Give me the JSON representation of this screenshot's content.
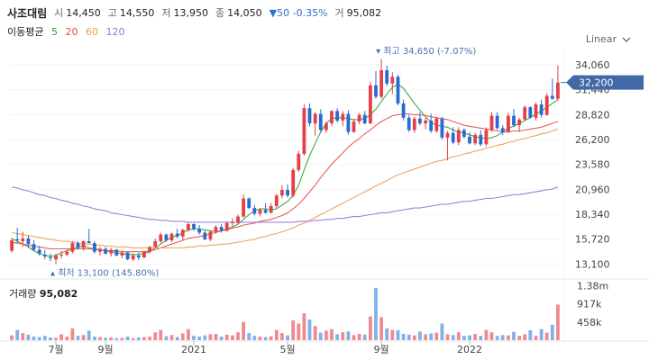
{
  "header": {
    "stock_name": "사조대림",
    "open_label": "시",
    "open": "14,450",
    "high_label": "고",
    "high": "14,550",
    "low_label": "저",
    "low": "13,950",
    "close_label": "종",
    "close": "14,050",
    "change": "▼50 -0.35%",
    "volume_label": "거",
    "volume": "95,082"
  },
  "moving_average": {
    "title": "이동평균",
    "periods": [
      {
        "label": "5",
        "color": "#2ca02c"
      },
      {
        "label": "20",
        "color": "#e64a4a"
      },
      {
        "label": "60",
        "color": "#f39a4c"
      },
      {
        "label": "120",
        "color": "#9b6fe0"
      }
    ]
  },
  "scale_toggle": {
    "label": "Linear"
  },
  "volume_panel": {
    "title": "거래량",
    "value": "95,082"
  },
  "colors": {
    "up": "#e5404a",
    "down": "#2a6bd1",
    "volume_up": "#f08a8f",
    "volume_down": "#7fb2e8",
    "price_tag": "#4169a8"
  },
  "chart_data": {
    "type": "candlestick",
    "price_axis": {
      "ticks": [
        "34,060",
        "31,440",
        "28,820",
        "26,200",
        "23,580",
        "20,960",
        "18,340",
        "15,720",
        "13,100"
      ],
      "range": [
        12000,
        35200
      ]
    },
    "volume_axis": {
      "ticks": [
        "1.38m",
        "917k",
        "458k"
      ],
      "range": [
        0,
        1500000
      ]
    },
    "x_ticks": [
      {
        "label": "7월",
        "index": 8
      },
      {
        "label": "9월",
        "index": 17
      },
      {
        "label": "2021",
        "index": 33
      },
      {
        "label": "5월",
        "index": 50
      },
      {
        "label": "9월",
        "index": 67
      },
      {
        "label": "2022",
        "index": 83
      }
    ],
    "current_price": {
      "label": "32,200",
      "value": 32200
    },
    "max_annotation": {
      "label": "최고 34,650 (-7.07%)",
      "index": 67,
      "value": 34650
    },
    "min_annotation": {
      "label": "최저 13,100 (145.80%)",
      "index": 8,
      "value": 13100
    },
    "ohlc": [
      [
        14500,
        15800,
        14300,
        15600
      ],
      [
        15700,
        16900,
        15300,
        15600
      ],
      [
        15500,
        16500,
        14900,
        15800
      ],
      [
        15800,
        16100,
        14800,
        15200
      ],
      [
        15200,
        15600,
        14500,
        14600
      ],
      [
        14600,
        15000,
        14000,
        14200
      ],
      [
        14100,
        14600,
        13600,
        13900
      ],
      [
        13800,
        14200,
        13400,
        13700
      ],
      [
        13600,
        14200,
        13100,
        14000
      ],
      [
        14000,
        14500,
        13700,
        14100
      ],
      [
        14100,
        14600,
        13900,
        14400
      ],
      [
        14400,
        15500,
        14200,
        15300
      ],
      [
        15300,
        15500,
        14600,
        14800
      ],
      [
        14800,
        15600,
        14500,
        15500
      ],
      [
        15500,
        16800,
        15300,
        15300
      ],
      [
        15300,
        15500,
        14200,
        14400
      ],
      [
        14400,
        14900,
        14000,
        14700
      ],
      [
        14700,
        14900,
        14100,
        14200
      ],
      [
        14200,
        14800,
        13900,
        14600
      ],
      [
        14600,
        14700,
        13900,
        14000
      ],
      [
        14000,
        14500,
        13700,
        14300
      ],
      [
        14300,
        14400,
        13500,
        13600
      ],
      [
        13600,
        14200,
        13400,
        14000
      ],
      [
        14000,
        14300,
        13500,
        13800
      ],
      [
        13800,
        14500,
        13700,
        14400
      ],
      [
        14400,
        15000,
        14200,
        14900
      ],
      [
        14900,
        15800,
        14800,
        15500
      ],
      [
        15500,
        16400,
        15300,
        16200
      ],
      [
        16200,
        16300,
        15400,
        15600
      ],
      [
        15600,
        16400,
        15400,
        16300
      ],
      [
        16300,
        16800,
        15800,
        16000
      ],
      [
        16000,
        16800,
        15600,
        16700
      ],
      [
        16700,
        17500,
        16500,
        17300
      ],
      [
        17300,
        17400,
        16600,
        16800
      ],
      [
        16800,
        17200,
        16200,
        16400
      ],
      [
        16400,
        16600,
        15600,
        15700
      ],
      [
        15700,
        16600,
        15500,
        16500
      ],
      [
        16500,
        17200,
        16300,
        17000
      ],
      [
        17000,
        17300,
        16400,
        16600
      ],
      [
        16600,
        17600,
        16500,
        17400
      ],
      [
        17400,
        17900,
        17100,
        17500
      ],
      [
        17500,
        18300,
        17300,
        18100
      ],
      [
        18100,
        20400,
        18000,
        20000
      ],
      [
        20000,
        20100,
        18900,
        19000
      ],
      [
        19000,
        19300,
        18200,
        18400
      ],
      [
        18400,
        19000,
        18100,
        18800
      ],
      [
        18800,
        19500,
        18400,
        18500
      ],
      [
        18500,
        19500,
        18400,
        19200
      ],
      [
        19200,
        20500,
        19000,
        20300
      ],
      [
        20300,
        21400,
        20000,
        20900
      ],
      [
        20900,
        21500,
        20100,
        20300
      ],
      [
        20300,
        23200,
        20100,
        23000
      ],
      [
        23000,
        25000,
        22800,
        24700
      ],
      [
        24700,
        29900,
        24500,
        29500
      ],
      [
        29500,
        30000,
        27600,
        27900
      ],
      [
        27900,
        29100,
        26600,
        28900
      ],
      [
        28900,
        29400,
        27000,
        27200
      ],
      [
        27200,
        28100,
        26900,
        27900
      ],
      [
        27900,
        29300,
        27600,
        29200
      ],
      [
        29200,
        29500,
        28000,
        28200
      ],
      [
        28200,
        29200,
        27600,
        28900
      ],
      [
        28900,
        29300,
        26700,
        27000
      ],
      [
        27000,
        28300,
        26900,
        28100
      ],
      [
        28100,
        29000,
        27800,
        28800
      ],
      [
        28800,
        29200,
        27800,
        27900
      ],
      [
        27900,
        32300,
        27800,
        31900
      ],
      [
        31900,
        33400,
        30500,
        30700
      ],
      [
        30700,
        34650,
        30500,
        33500
      ],
      [
        33500,
        34000,
        31800,
        32100
      ],
      [
        32100,
        33300,
        31000,
        32800
      ],
      [
        32800,
        33000,
        29800,
        30000
      ],
      [
        30000,
        30400,
        28200,
        28500
      ],
      [
        28500,
        28800,
        27000,
        27200
      ],
      [
        27200,
        28600,
        26900,
        28400
      ],
      [
        28400,
        29100,
        27700,
        27900
      ],
      [
        27900,
        28500,
        27300,
        28200
      ],
      [
        28200,
        28900,
        26900,
        27100
      ],
      [
        27100,
        28600,
        26900,
        28400
      ],
      [
        28400,
        28600,
        26200,
        26400
      ],
      [
        26400,
        27100,
        24000,
        26900
      ],
      [
        26900,
        27500,
        25700,
        25900
      ],
      [
        25900,
        27500,
        25600,
        27200
      ],
      [
        27200,
        27400,
        26300,
        26500
      ],
      [
        26500,
        27000,
        25700,
        25800
      ],
      [
        25800,
        26900,
        25600,
        26700
      ],
      [
        26700,
        27200,
        25500,
        25700
      ],
      [
        25700,
        27500,
        25500,
        27200
      ],
      [
        27200,
        29100,
        27000,
        28700
      ],
      [
        28700,
        29100,
        27200,
        27400
      ],
      [
        27400,
        27700,
        26700,
        27000
      ],
      [
        27000,
        29000,
        26900,
        28700
      ],
      [
        28700,
        29400,
        27500,
        27700
      ],
      [
        27700,
        28500,
        27000,
        28300
      ],
      [
        28300,
        29800,
        28200,
        29600
      ],
      [
        29600,
        29700,
        28400,
        28500
      ],
      [
        28500,
        30100,
        28200,
        29900
      ],
      [
        29900,
        30400,
        28500,
        28800
      ],
      [
        28800,
        31100,
        28700,
        30800
      ],
      [
        30800,
        32600,
        30400,
        30500
      ],
      [
        30500,
        34000,
        30300,
        32200
      ]
    ],
    "ma_lines": [
      {
        "period": 5,
        "color": "#2ca02c",
        "points": [
          15800,
          15500,
          15200,
          14900,
          14500,
          14200,
          14000,
          13900,
          14000,
          14300,
          14500,
          14700,
          14900,
          15000,
          14800,
          14700,
          14600,
          14500,
          14400,
          14300,
          14200,
          14100,
          14100,
          14100,
          14200,
          14400,
          14800,
          15200,
          15600,
          15900,
          16100,
          16400,
          16700,
          16800,
          16800,
          16700,
          16600,
          16500,
          16600,
          16800,
          17000,
          17300,
          17800,
          18300,
          18700,
          18900,
          18900,
          18800,
          18900,
          19300,
          19700,
          20300,
          21400,
          23000,
          24500,
          25800,
          27000,
          27900,
          28400,
          28500,
          28500,
          28400,
          28300,
          28300,
          28400,
          28800,
          29400,
          30200,
          31000,
          31700,
          32000,
          31600,
          30800,
          30000,
          29300,
          28600,
          28000,
          27700,
          27600,
          27500,
          27200,
          27000,
          26900,
          26700,
          26500,
          26400,
          26300,
          26400,
          26600,
          27000,
          27400,
          27600,
          27900,
          28200,
          28500,
          28900,
          29200,
          29600,
          30000,
          30400
        ]
      },
      {
        "period": 20,
        "color": "#e64a4a",
        "points": [
          15400,
          15300,
          15200,
          15100,
          15000,
          14900,
          14800,
          14700,
          14700,
          14700,
          14700,
          14700,
          14700,
          14700,
          14700,
          14600,
          14600,
          14500,
          14500,
          14500,
          14400,
          14400,
          14400,
          14400,
          14400,
          14500,
          14600,
          14800,
          15000,
          15200,
          15400,
          15600,
          15800,
          15900,
          16000,
          16100,
          16300,
          16400,
          16600,
          16700,
          16900,
          17000,
          17200,
          17300,
          17400,
          17600,
          17700,
          17800,
          18000,
          18200,
          18500,
          18900,
          19400,
          20000,
          20700,
          21400,
          22200,
          22900,
          23600,
          24200,
          24800,
          25400,
          25900,
          26300,
          26800,
          27200,
          27700,
          28100,
          28400,
          28700,
          28800,
          28900,
          28900,
          28800,
          28800,
          28700,
          28600,
          28500,
          28400,
          28300,
          28100,
          27900,
          27700,
          27600,
          27500,
          27400,
          27300,
          27200,
          27100,
          27000,
          27000,
          27100,
          27100,
          27200,
          27300,
          27400,
          27500,
          27700,
          27900,
          28100
        ]
      },
      {
        "period": 60,
        "color": "#f39a4c",
        "points": [
          16400,
          16300,
          16200,
          16100,
          16000,
          15900,
          15800,
          15700,
          15600,
          15500,
          15500,
          15400,
          15300,
          15200,
          15200,
          15100,
          15100,
          15000,
          15000,
          14900,
          14900,
          14900,
          14800,
          14800,
          14800,
          14800,
          14800,
          14800,
          14800,
          14800,
          14800,
          14800,
          14900,
          14900,
          15000,
          15000,
          15100,
          15100,
          15200,
          15200,
          15300,
          15400,
          15500,
          15600,
          15700,
          15900,
          16000,
          16200,
          16300,
          16500,
          16700,
          16900,
          17200,
          17400,
          17700,
          18000,
          18300,
          18600,
          18900,
          19200,
          19500,
          19800,
          20100,
          20400,
          20700,
          21000,
          21300,
          21600,
          21900,
          22200,
          22500,
          22700,
          22900,
          23100,
          23300,
          23500,
          23700,
          23900,
          24000,
          24200,
          24400,
          24500,
          24700,
          24800,
          25000,
          25100,
          25300,
          25400,
          25600,
          25700,
          25900,
          26000,
          26200,
          26300,
          26500,
          26600,
          26800,
          26900,
          27100,
          27300
        ]
      },
      {
        "period": 120,
        "color": "#9b6fe0",
        "points": [
          21200,
          21100,
          20900,
          20800,
          20600,
          20400,
          20300,
          20100,
          20000,
          19800,
          19700,
          19500,
          19400,
          19200,
          19100,
          18900,
          18800,
          18700,
          18500,
          18400,
          18300,
          18200,
          18100,
          18000,
          17900,
          17800,
          17800,
          17700,
          17700,
          17600,
          17600,
          17600,
          17500,
          17500,
          17500,
          17500,
          17500,
          17500,
          17500,
          17500,
          17500,
          17500,
          17500,
          17500,
          17500,
          17500,
          17500,
          17500,
          17500,
          17500,
          17500,
          17500,
          17600,
          17600,
          17600,
          17700,
          17700,
          17800,
          17800,
          17900,
          17900,
          18000,
          18100,
          18100,
          18200,
          18300,
          18400,
          18500,
          18500,
          18600,
          18700,
          18800,
          18900,
          19000,
          19000,
          19100,
          19200,
          19300,
          19400,
          19400,
          19500,
          19600,
          19700,
          19700,
          19800,
          19900,
          20000,
          20000,
          20100,
          20200,
          20300,
          20400,
          20400,
          20500,
          20600,
          20700,
          20800,
          20900,
          21000,
          21200
        ]
      }
    ],
    "volume": [
      120000,
      260000,
      180000,
      140000,
      90000,
      80000,
      110000,
      70000,
      60000,
      150000,
      90000,
      300000,
      110000,
      130000,
      240000,
      90000,
      80000,
      60000,
      70000,
      50000,
      60000,
      90000,
      50000,
      70000,
      80000,
      90000,
      200000,
      260000,
      100000,
      130000,
      80000,
      170000,
      280000,
      110000,
      90000,
      120000,
      150000,
      160000,
      90000,
      140000,
      120000,
      200000,
      460000,
      180000,
      110000,
      90000,
      80000,
      100000,
      260000,
      180000,
      120000,
      500000,
      420000,
      680000,
      520000,
      360000,
      190000,
      240000,
      280000,
      150000,
      200000,
      220000,
      130000,
      160000,
      140000,
      600000,
      1320000,
      580000,
      300000,
      260000,
      250000,
      160000,
      140000,
      120000,
      220000,
      150000,
      170000,
      190000,
      420000,
      150000,
      130000,
      200000,
      110000,
      120000,
      160000,
      110000,
      260000,
      200000,
      110000,
      130000,
      120000,
      210000,
      110000,
      150000,
      250000,
      110000,
      280000,
      190000,
      390000,
      900000
    ]
  }
}
